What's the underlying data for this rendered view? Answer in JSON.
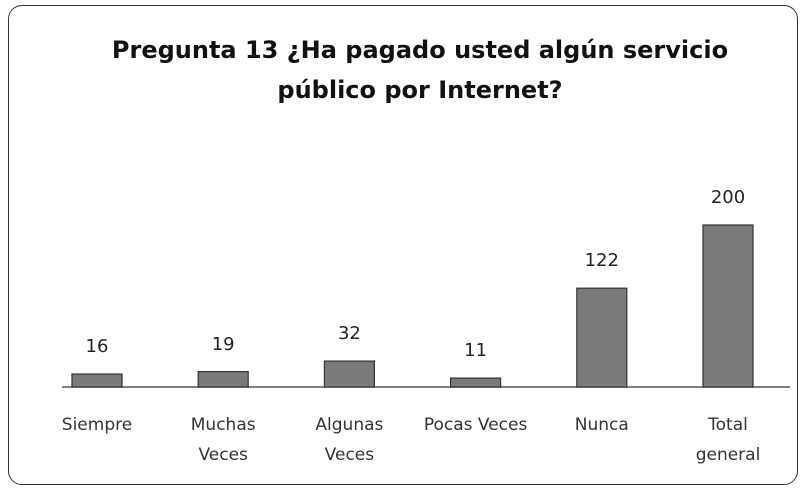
{
  "chart_data": {
    "type": "bar",
    "title": "Pregunta 13 ¿Ha pagado usted algún servicio\npúblico por Internet?",
    "categories": [
      "Siempre",
      "Muchas\nVeces",
      "Algunas\nVeces",
      "Pocas Veces",
      "Nunca",
      "Total\ngeneral"
    ],
    "values": [
      16,
      19,
      32,
      11,
      122,
      200
    ],
    "color": "#7a7a7a"
  }
}
